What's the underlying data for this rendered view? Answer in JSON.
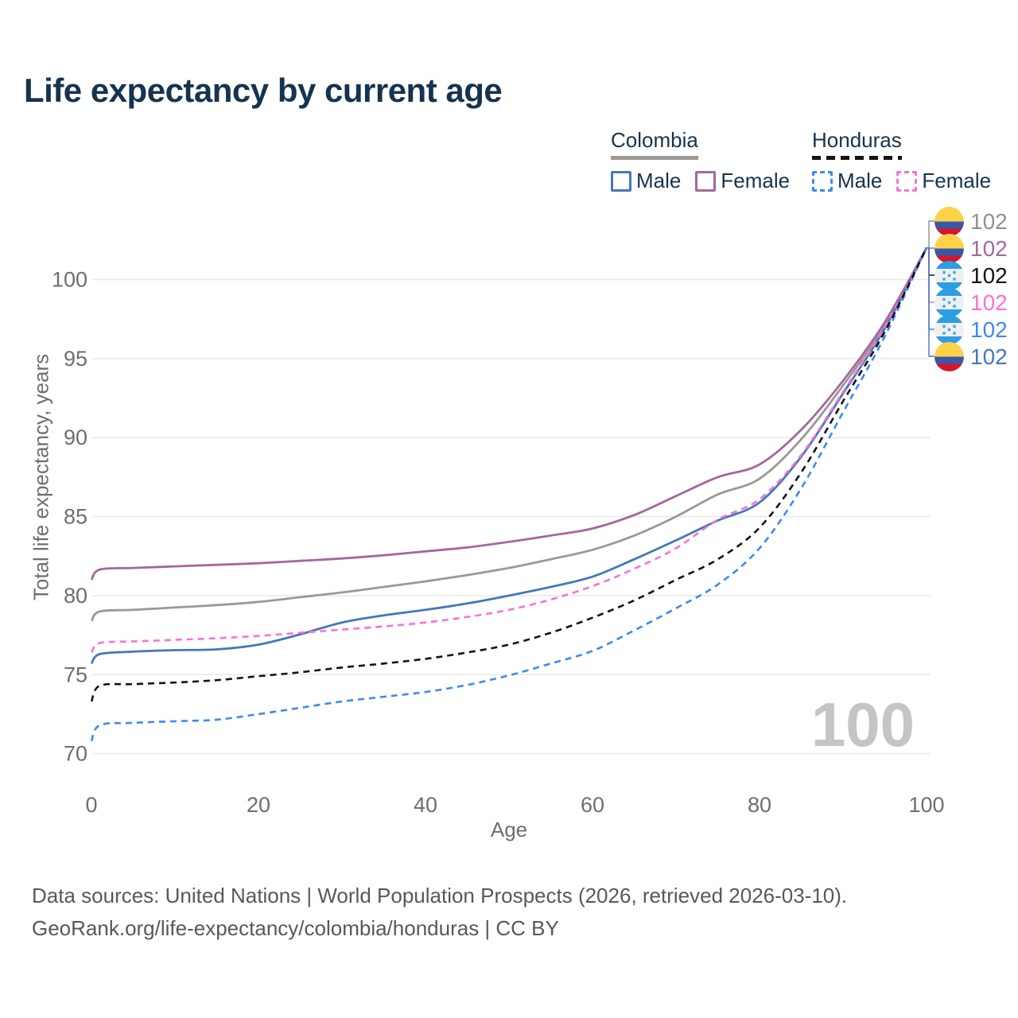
{
  "title": "Life expectancy by current age",
  "watermark": "100",
  "legend": {
    "groups": [
      {
        "label": "Colombia",
        "line_color": "#999999",
        "line_style": "solid",
        "items": [
          {
            "label": "Male",
            "color": "#4478ba",
            "style": "solid"
          },
          {
            "label": "Female",
            "color": "#a5679e",
            "style": "solid"
          }
        ]
      },
      {
        "label": "Honduras",
        "line_color": "#141414",
        "line_style": "dashed",
        "items": [
          {
            "label": "Male",
            "color": "#3b8af3",
            "style": "dashed"
          },
          {
            "label": "Female",
            "color": "#fb6fd8",
            "style": "dashed"
          }
        ]
      }
    ]
  },
  "right_labels": [
    {
      "flag": "colombia",
      "series": "Colombia",
      "value": "102",
      "color": "#909090"
    },
    {
      "flag": "colombia",
      "series": "Colombia Female",
      "value": "102",
      "color": "#a5679e"
    },
    {
      "flag": "honduras",
      "series": "Honduras",
      "value": "102",
      "color": "#141414"
    },
    {
      "flag": "honduras",
      "series": "Honduras Female",
      "value": "102",
      "color": "#fb6fd8"
    },
    {
      "flag": "honduras",
      "series": "Honduras Male",
      "value": "102",
      "color": "#3b8af3"
    },
    {
      "flag": "colombia",
      "series": "Colombia Male",
      "value": "102",
      "color": "#4478ba"
    }
  ],
  "footer": {
    "line1": "Data sources: United Nations | World Population Prospects (2026, retrieved 2026-03-10).",
    "line2": "GeoRank.org/life-expectancy/colombia/honduras | CC BY"
  },
  "chart_data": {
    "type": "line",
    "title": "Life expectancy by current age",
    "xlabel": "Age",
    "ylabel": "Total life expectancy, years",
    "xlim": [
      0,
      100
    ],
    "ylim": [
      70,
      102
    ],
    "x_ticks": [
      0,
      20,
      40,
      60,
      80,
      100
    ],
    "y_ticks": [
      70,
      75,
      80,
      85,
      90,
      95,
      100
    ],
    "grid": "horizontal-only",
    "legend_position": "top-right",
    "x": [
      0,
      1,
      5,
      10,
      15,
      20,
      25,
      30,
      35,
      40,
      45,
      50,
      55,
      60,
      65,
      70,
      75,
      80,
      85,
      90,
      95,
      100
    ],
    "series": [
      {
        "name": "Colombia",
        "country": "Colombia",
        "sex": "Both",
        "color": "#999999",
        "style": "solid",
        "values": [
          78.4,
          79.0,
          79.1,
          79.25,
          79.4,
          79.6,
          79.9,
          80.2,
          80.55,
          80.9,
          81.3,
          81.75,
          82.3,
          82.9,
          83.8,
          85.0,
          86.4,
          87.4,
          89.9,
          93.3,
          97.1,
          102
        ]
      },
      {
        "name": "Colombia Female",
        "country": "Colombia",
        "sex": "Female",
        "color": "#a5679e",
        "style": "solid",
        "values": [
          81.0,
          81.65,
          81.75,
          81.85,
          81.95,
          82.05,
          82.2,
          82.35,
          82.55,
          82.8,
          83.05,
          83.4,
          83.8,
          84.25,
          85.1,
          86.3,
          87.5,
          88.3,
          90.5,
          93.6,
          97.3,
          102
        ]
      },
      {
        "name": "Colombia Male",
        "country": "Colombia",
        "sex": "Male",
        "color": "#4478ba",
        "style": "solid",
        "values": [
          75.7,
          76.3,
          76.45,
          76.55,
          76.6,
          76.9,
          77.55,
          78.3,
          78.75,
          79.1,
          79.5,
          80.0,
          80.55,
          81.2,
          82.3,
          83.5,
          84.75,
          85.9,
          88.8,
          92.8,
          96.9,
          102
        ]
      },
      {
        "name": "Honduras Male",
        "country": "Honduras",
        "sex": "Male",
        "color": "#3b8af3",
        "style": "dashed",
        "values": [
          70.8,
          71.8,
          71.95,
          72.05,
          72.15,
          72.5,
          72.9,
          73.3,
          73.6,
          73.9,
          74.35,
          74.95,
          75.7,
          76.5,
          77.8,
          79.2,
          80.7,
          83.0,
          86.8,
          91.6,
          96.4,
          102
        ]
      },
      {
        "name": "Honduras Female",
        "country": "Honduras",
        "sex": "Female",
        "color": "#fb6fd8",
        "style": "dashed",
        "values": [
          76.4,
          77.0,
          77.1,
          77.2,
          77.3,
          77.45,
          77.65,
          77.85,
          78.05,
          78.3,
          78.65,
          79.1,
          79.75,
          80.6,
          81.7,
          83.0,
          84.8,
          86.1,
          88.9,
          92.9,
          97.0,
          102
        ]
      },
      {
        "name": "Honduras",
        "country": "Honduras",
        "sex": "Both",
        "color": "#141414",
        "style": "dashed",
        "values": [
          73.3,
          74.3,
          74.4,
          74.5,
          74.65,
          74.9,
          75.15,
          75.45,
          75.7,
          76.0,
          76.4,
          76.9,
          77.65,
          78.6,
          79.7,
          81.0,
          82.3,
          84.3,
          87.8,
          92.3,
          96.7,
          102
        ]
      }
    ],
    "end_values_at_age_100": [
      102,
      102,
      102,
      102,
      102,
      102
    ]
  },
  "colors": {
    "title_text": "#16334f",
    "axis_text": "#6e6e6e",
    "gridline": "#e8e8e8",
    "footer_text": "#58585a",
    "watermark": "#c5c5c5",
    "flag_colombia": [
      "#ffd24a",
      "#3a57a8",
      "#d6152c"
    ],
    "flag_honduras": [
      "#2d9de5",
      "#efefef"
    ]
  }
}
